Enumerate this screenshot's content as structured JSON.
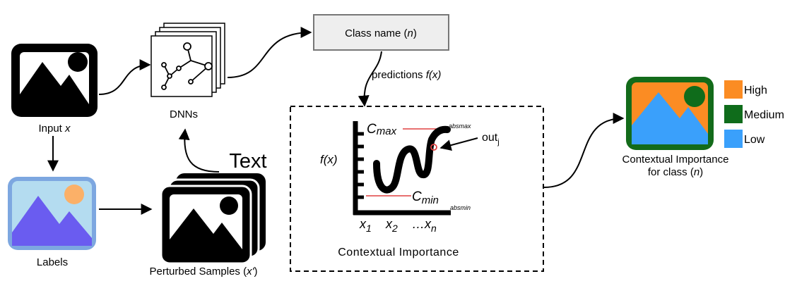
{
  "input": {
    "label_main": "Input ",
    "label_var": "x"
  },
  "labels": {
    "label": "Labels"
  },
  "dnns": {
    "label": "DNNs"
  },
  "perturbed": {
    "label_main": "Perturbed Samples (",
    "label_var": "x'",
    "label_end": ")",
    "overlay_text": "Text"
  },
  "class_box": {
    "label_main": "Class name (",
    "label_var": "n",
    "label_end": ")"
  },
  "predictions": {
    "label_main": "predictions ",
    "label_var": "f(x)"
  },
  "ci_box": {
    "title": "Contextual Importance",
    "y_axis_label": "f(x)",
    "cmax": "C",
    "cmax_sub": "max",
    "absmax": "absmax",
    "cmin": "C",
    "cmin_sub": "min",
    "absmin": "absmin",
    "out": "out",
    "out_sub": "j",
    "x1": "x",
    "x1_sub": "1",
    "x2": "x",
    "x2_sub": "2",
    "xn_prefix": "…x",
    "xn_sub": "n"
  },
  "output": {
    "label_line1": "Contextual Importance",
    "label_line2_main": "for class (",
    "label_line2_var": "n",
    "label_line2_end": ")"
  },
  "legend": [
    {
      "label": "High",
      "color": "#fb8c23"
    },
    {
      "label": "Medium",
      "color": "#0f6c1b"
    },
    {
      "label": "Low",
      "color": "#3aa0fb"
    }
  ],
  "colors": {
    "labels_frame": "#7da7e0",
    "labels_sky": "#b4dcf0",
    "labels_sun": "#fbb068",
    "labels_mountain": "#6a5cf0",
    "output_frame": "#136b1a",
    "output_bg": "#fb8c23",
    "output_sun": "#0f6c1b",
    "output_mountain": "#3aa0fb",
    "ci_lines": "#e04040",
    "class_box_fill": "#eeeeee"
  }
}
